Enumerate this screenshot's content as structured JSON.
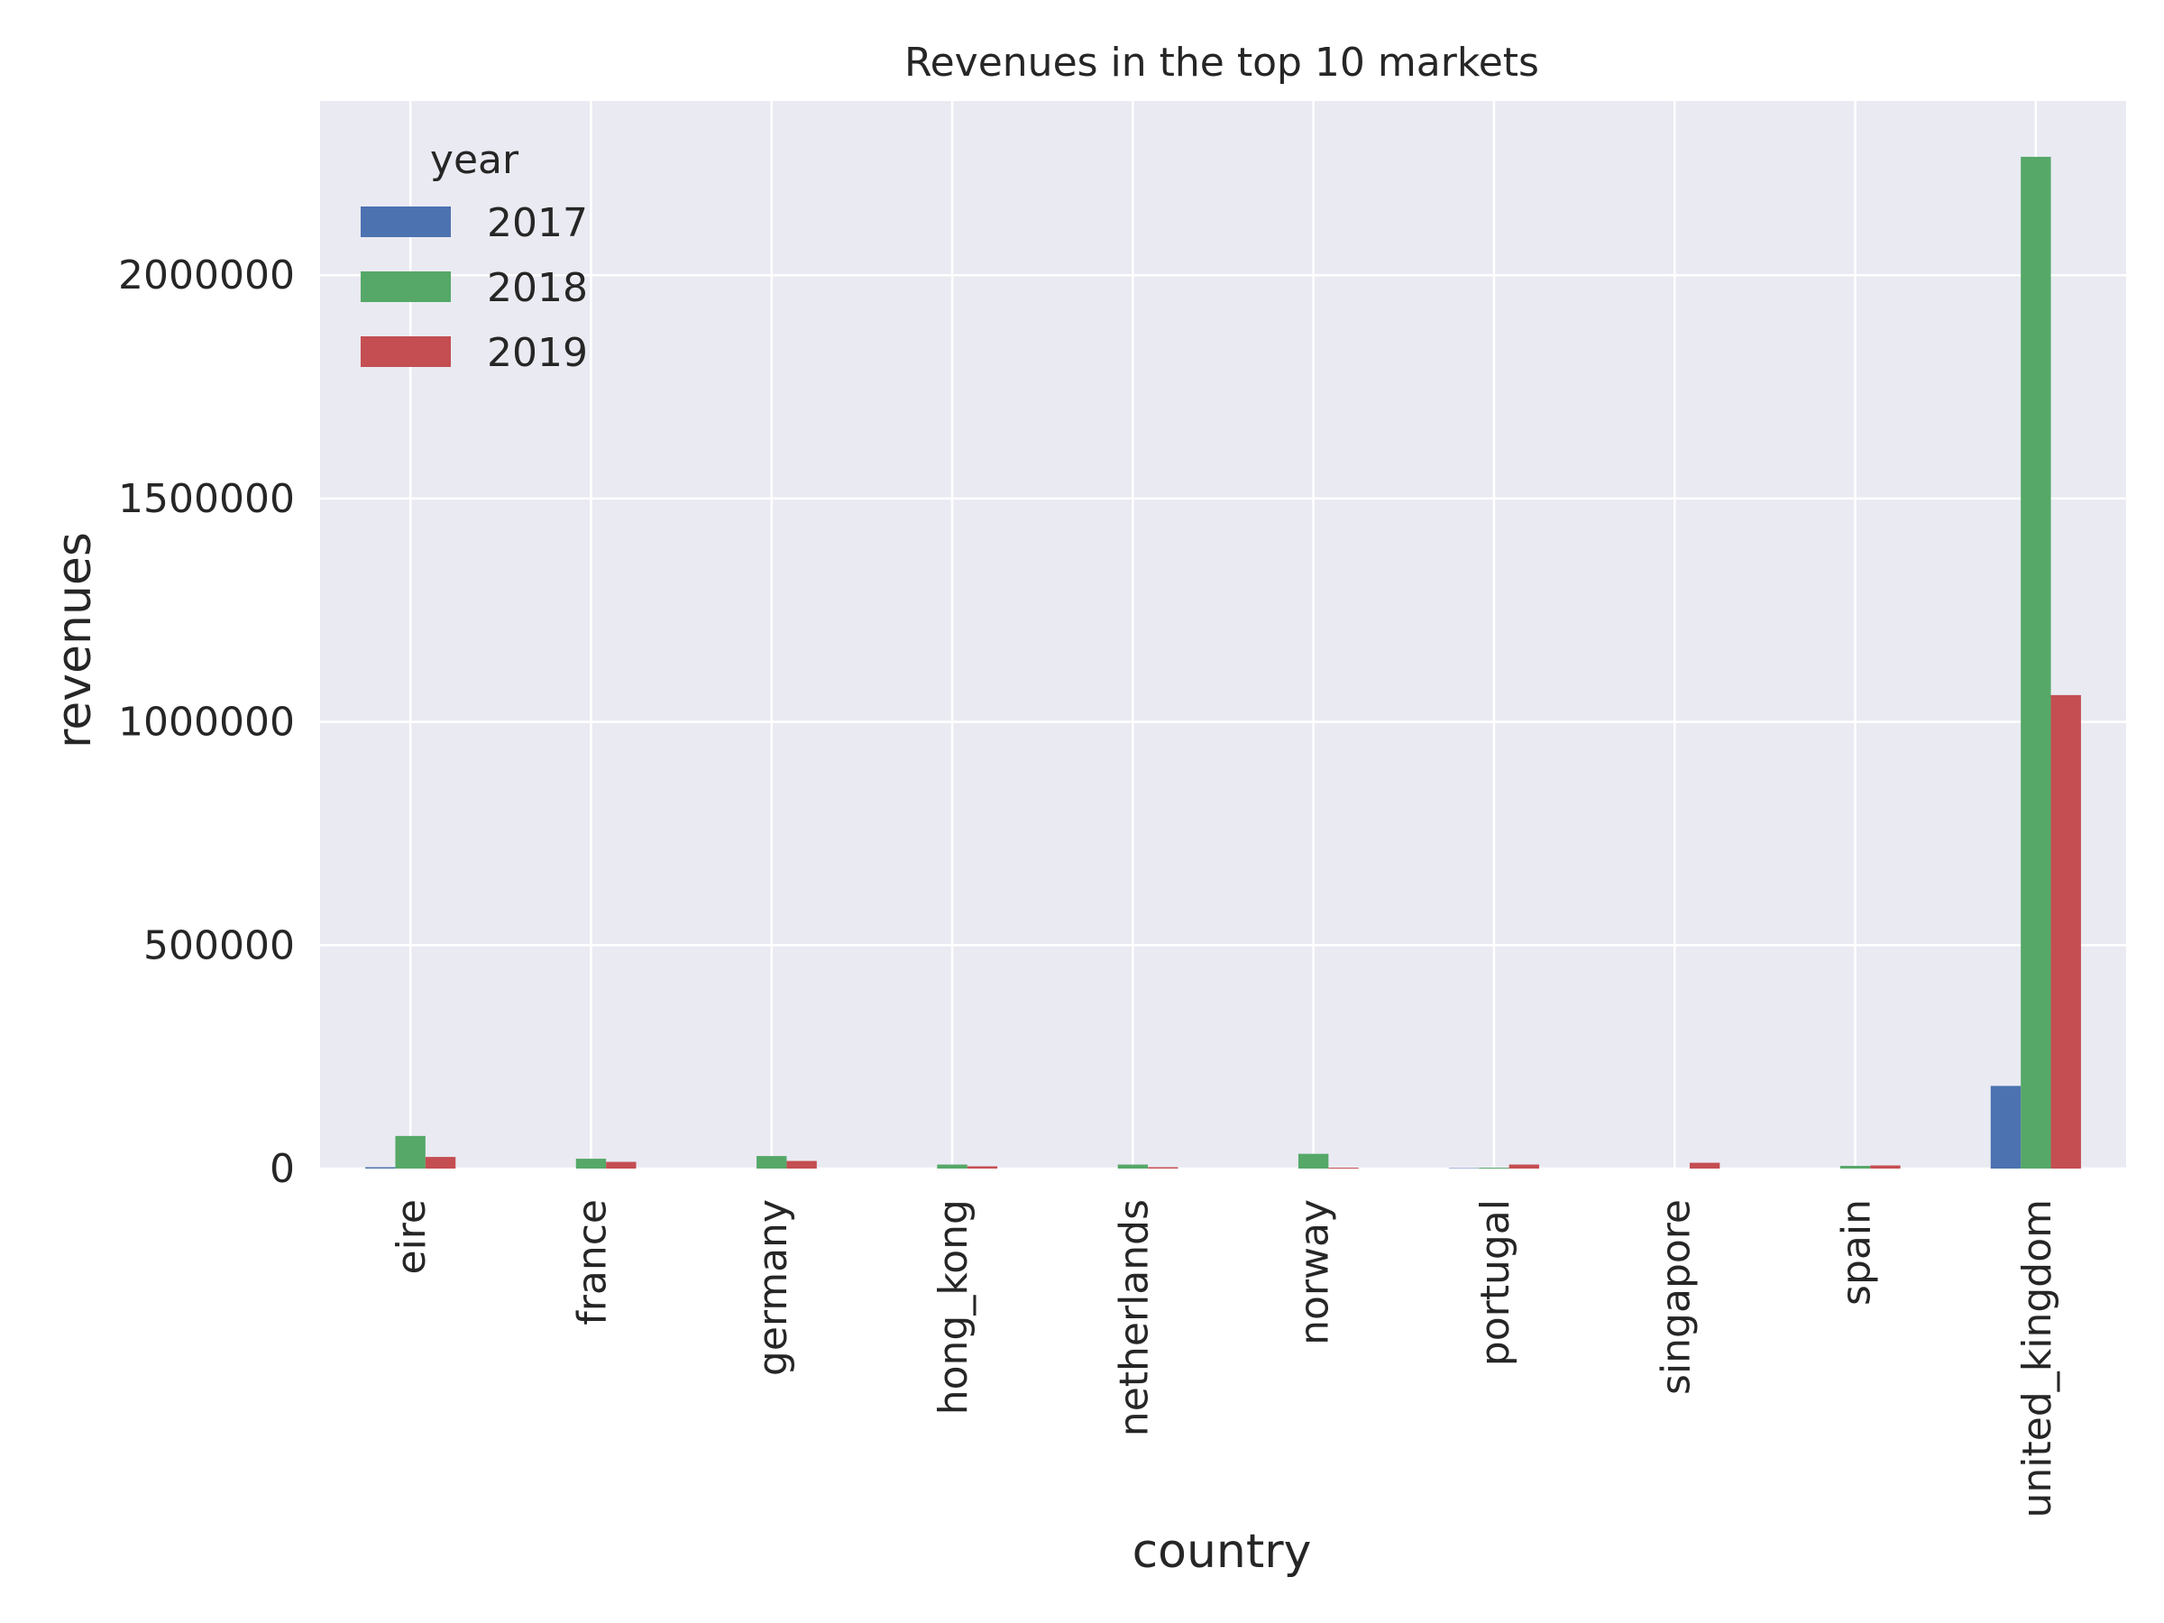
{
  "chart_data": {
    "type": "bar",
    "title": "Revenues in the top 10 markets",
    "xlabel": "country",
    "ylabel": "revenues",
    "ylim": [
      0,
      2390000
    ],
    "yticks": [
      0,
      500000,
      1000000,
      1500000,
      2000000
    ],
    "ytick_labels": [
      "0",
      "500000",
      "1000000",
      "1500000",
      "2000000"
    ],
    "grid": true,
    "legend": {
      "title": "year",
      "position": "top-left"
    },
    "categories": [
      "eire",
      "france",
      "germany",
      "hong_kong",
      "netherlands",
      "norway",
      "portugal",
      "singapore",
      "spain",
      "united_kingdom"
    ],
    "series": [
      {
        "name": "2017",
        "color": "#4c72b0",
        "values": [
          3000,
          0,
          0,
          0,
          0,
          0,
          1000,
          0,
          0,
          185000
        ]
      },
      {
        "name": "2018",
        "color": "#55a868",
        "values": [
          73000,
          22000,
          28000,
          9000,
          9000,
          33000,
          2000,
          0,
          6000,
          2265000
        ]
      },
      {
        "name": "2019",
        "color": "#c44e52",
        "values": [
          26000,
          15000,
          17000,
          5000,
          3000,
          2000,
          9000,
          13000,
          7000,
          1060000
        ]
      }
    ],
    "plot_background": "#eaeaf2",
    "grid_color": "#ffffff"
  }
}
